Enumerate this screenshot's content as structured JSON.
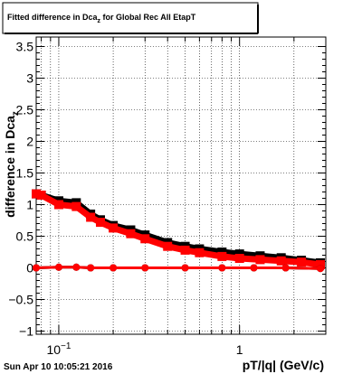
{
  "title_main": "Fitted difference in Dca",
  "title_sub": "z",
  "title_rest": " for Global Rec All EtapT",
  "timestamp": "Sun Apr 10 10:05:21 2016",
  "colors": {
    "black": "#000000",
    "red": "#ff0000",
    "grid": "#000000",
    "background": "#ffffff"
  },
  "chart_data": {
    "type": "scatter",
    "xlabel": "pT/|q| (GeV/c)",
    "ylabel_main": "difference in Dca",
    "ylabel_sub": "z",
    "xscale": "log",
    "xlim": [
      0.075,
      3.0
    ],
    "ylim": [
      -1.05,
      3.65
    ],
    "grid": true,
    "y_ticks": [
      -1,
      -0.5,
      0,
      0.5,
      1,
      1.5,
      2,
      2.5,
      3,
      3.5
    ],
    "y_tick_labels": [
      "−1",
      "−0.5",
      "0",
      "0.5",
      "1",
      "1.5",
      "2",
      "2.5",
      "3",
      "3.5"
    ],
    "x_tick_labels": [
      {
        "x": 0.1,
        "base": "10",
        "exp": "−1"
      },
      {
        "x": 1,
        "text": "1"
      }
    ],
    "series": [
      {
        "color": "#000000",
        "marker": "square",
        "x": [
          0.075,
          0.08,
          0.1,
          0.125,
          0.15,
          0.17,
          0.2,
          0.25,
          0.3,
          0.4,
          0.5,
          0.6,
          0.8,
          1.0,
          1.3,
          1.7,
          2.2,
          2.8
        ],
        "y": [
          1.17,
          1.15,
          1.06,
          1.03,
          0.85,
          0.76,
          0.67,
          0.6,
          0.52,
          0.4,
          0.34,
          0.3,
          0.25,
          0.22,
          0.19,
          0.16,
          0.12,
          0.08
        ]
      },
      {
        "color": "#ff0000",
        "marker": "square",
        "x": [
          0.075,
          0.08,
          0.1,
          0.125,
          0.15,
          0.17,
          0.2,
          0.25,
          0.3,
          0.4,
          0.5,
          0.6,
          0.8,
          1.0,
          1.3,
          1.7,
          2.2,
          2.8
        ],
        "y": [
          1.17,
          1.15,
          1.0,
          0.97,
          0.8,
          0.72,
          0.63,
          0.54,
          0.46,
          0.34,
          0.28,
          0.24,
          0.18,
          0.15,
          0.13,
          0.11,
          0.09,
          0.05
        ]
      },
      {
        "color": "#000000",
        "marker": "circle",
        "x": [
          0.075,
          0.1,
          0.125,
          0.15,
          0.2,
          0.3,
          0.5,
          0.8,
          1.2,
          1.8,
          2.8
        ],
        "y": [
          0.0,
          0.01,
          0.01,
          0.0,
          0.0,
          0.0,
          0.0,
          0.0,
          0.0,
          0.0,
          -0.01
        ]
      },
      {
        "color": "#ff0000",
        "marker": "circle",
        "x": [
          0.075,
          0.1,
          0.125,
          0.15,
          0.2,
          0.3,
          0.5,
          0.8,
          1.2,
          1.8,
          2.8
        ],
        "y": [
          0.0,
          0.01,
          0.01,
          0.0,
          0.0,
          0.0,
          0.0,
          0.0,
          0.0,
          0.0,
          -0.01
        ]
      }
    ]
  }
}
